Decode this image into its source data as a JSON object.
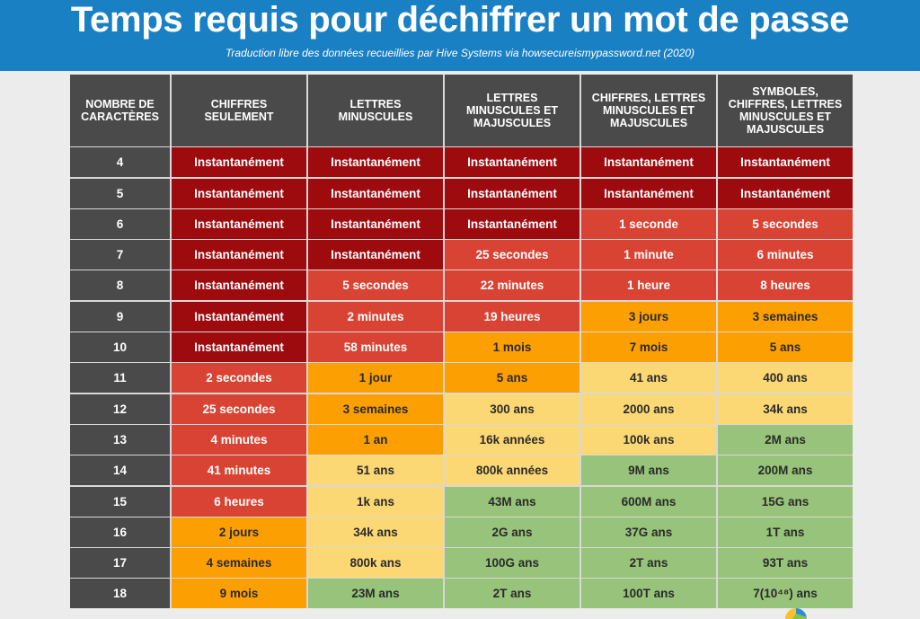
{
  "banner": {
    "title": "Temps requis pour déchiffrer un mot de passe",
    "subtitle": "Traduction libre des données recueillies par Hive Systems via howsecureismypassword.net (2020)",
    "color": "#1a80c4"
  },
  "headers": [
    "NOMBRE DE CARACTÈRES",
    "CHIFFRES SEULEMENT",
    "LETTRES MINUSCULES",
    "LETTRES MINUSCULES ET MAJUSCULES",
    "CHIFFRES, LETTRES MINUSCULES ET MAJUSCULES",
    "SYMBOLES, CHIFFRES, LETTRES MINUSCULES ET MAJUSCULES"
  ],
  "legend_levels": {
    "i": "#9e0b0f",
    "r": "#d94333",
    "o": "#fb9f03",
    "y": "#fcd874",
    "g": "#97c37a"
  },
  "rows": [
    {
      "n": "4",
      "cells": [
        [
          "Instantanément",
          "i"
        ],
        [
          "Instantanément",
          "i"
        ],
        [
          "Instantanément",
          "i"
        ],
        [
          "Instantanément",
          "i"
        ],
        [
          "Instantanément",
          "i"
        ]
      ]
    },
    {
      "n": "5",
      "cells": [
        [
          "Instantanément",
          "i"
        ],
        [
          "Instantanément",
          "i"
        ],
        [
          "Instantanément",
          "i"
        ],
        [
          "Instantanément",
          "i"
        ],
        [
          "Instantanément",
          "i"
        ]
      ]
    },
    {
      "n": "6",
      "cells": [
        [
          "Instantanément",
          "i"
        ],
        [
          "Instantanément",
          "i"
        ],
        [
          "Instantanément",
          "i"
        ],
        [
          "1 seconde",
          "r"
        ],
        [
          "5 secondes",
          "r"
        ]
      ]
    },
    {
      "n": "7",
      "cells": [
        [
          "Instantanément",
          "i"
        ],
        [
          "Instantanément",
          "i"
        ],
        [
          "25 secondes",
          "r"
        ],
        [
          "1 minute",
          "r"
        ],
        [
          "6 minutes",
          "r"
        ]
      ]
    },
    {
      "n": "8",
      "cells": [
        [
          "Instantanément",
          "i"
        ],
        [
          "5 secondes",
          "r"
        ],
        [
          "22 minutes",
          "r"
        ],
        [
          "1 heure",
          "r"
        ],
        [
          "8 heures",
          "r"
        ]
      ]
    },
    {
      "n": "9",
      "cells": [
        [
          "Instantanément",
          "i"
        ],
        [
          "2 minutes",
          "r"
        ],
        [
          "19 heures",
          "r"
        ],
        [
          "3 jours",
          "o"
        ],
        [
          "3 semaines",
          "o"
        ]
      ]
    },
    {
      "n": "10",
      "cells": [
        [
          "Instantanément",
          "i"
        ],
        [
          "58 minutes",
          "r"
        ],
        [
          "1 mois",
          "o"
        ],
        [
          "7 mois",
          "o"
        ],
        [
          "5 ans",
          "o"
        ]
      ]
    },
    {
      "n": "11",
      "cells": [
        [
          "2 secondes",
          "r"
        ],
        [
          "1 jour",
          "o"
        ],
        [
          "5 ans",
          "o"
        ],
        [
          "41 ans",
          "y"
        ],
        [
          "400 ans",
          "y"
        ]
      ]
    },
    {
      "n": "12",
      "cells": [
        [
          "25 secondes",
          "r"
        ],
        [
          "3 semaines",
          "o"
        ],
        [
          "300 ans",
          "y"
        ],
        [
          "2000 ans",
          "y"
        ],
        [
          "34k ans",
          "y"
        ]
      ]
    },
    {
      "n": "13",
      "cells": [
        [
          "4 minutes",
          "r"
        ],
        [
          "1 an",
          "o"
        ],
        [
          "16k années",
          "y"
        ],
        [
          "100k ans",
          "y"
        ],
        [
          "2M ans",
          "g"
        ]
      ]
    },
    {
      "n": "14",
      "cells": [
        [
          "41 minutes",
          "r"
        ],
        [
          "51 ans",
          "y"
        ],
        [
          "800k années",
          "y"
        ],
        [
          "9M ans",
          "g"
        ],
        [
          "200M ans",
          "g"
        ]
      ]
    },
    {
      "n": "15",
      "cells": [
        [
          "6 heures",
          "r"
        ],
        [
          "1k ans",
          "y"
        ],
        [
          "43M ans",
          "g"
        ],
        [
          "600M ans",
          "g"
        ],
        [
          "15G ans",
          "g"
        ]
      ]
    },
    {
      "n": "16",
      "cells": [
        [
          "2 jours",
          "o"
        ],
        [
          "34k ans",
          "y"
        ],
        [
          "2G ans",
          "g"
        ],
        [
          "37G ans",
          "g"
        ],
        [
          "1T ans",
          "g"
        ]
      ]
    },
    {
      "n": "17",
      "cells": [
        [
          "4 semaines",
          "o"
        ],
        [
          "800k ans",
          "y"
        ],
        [
          "100G ans",
          "g"
        ],
        [
          "2T ans",
          "g"
        ],
        [
          "93T ans",
          "g"
        ]
      ]
    },
    {
      "n": "18",
      "cells": [
        [
          "9 mois",
          "o"
        ],
        [
          "23M ans",
          "g"
        ],
        [
          "2T ans",
          "g"
        ],
        [
          "100T ans",
          "g"
        ],
        [
          "7(10⁴⁸) ans",
          "g"
        ]
      ]
    }
  ]
}
